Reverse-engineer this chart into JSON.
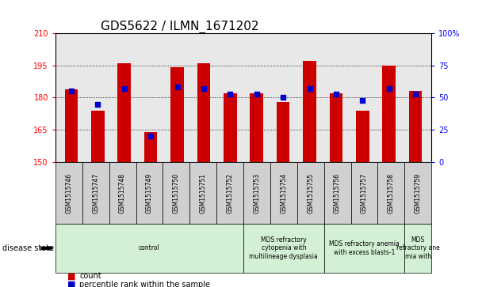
{
  "title": "GDS5622 / ILMN_1671202",
  "samples": [
    "GSM1515746",
    "GSM1515747",
    "GSM1515748",
    "GSM1515749",
    "GSM1515750",
    "GSM1515751",
    "GSM1515752",
    "GSM1515753",
    "GSM1515754",
    "GSM1515755",
    "GSM1515756",
    "GSM1515757",
    "GSM1515758",
    "GSM1515759"
  ],
  "counts": [
    184,
    174,
    196,
    164,
    194,
    196,
    182,
    182,
    178,
    197,
    182,
    174,
    195,
    183
  ],
  "percentile_ranks": [
    55,
    45,
    57,
    20,
    58,
    57,
    53,
    53,
    50,
    57,
    53,
    48,
    57,
    53
  ],
  "ylim_left": [
    150,
    210
  ],
  "ylim_right": [
    0,
    100
  ],
  "yticks_left": [
    150,
    165,
    180,
    195,
    210
  ],
  "yticks_right": [
    0,
    25,
    50,
    75,
    100
  ],
  "yticklabels_right": [
    "0",
    "25",
    "50",
    "75",
    "100%"
  ],
  "bar_color": "#cc0000",
  "dot_color": "#0000cc",
  "bar_width": 0.5,
  "dot_size": 25,
  "grid_color": "#000000",
  "background_color": "#ffffff",
  "plot_bg_color": "#e8e8e8",
  "group_boundaries": [
    {
      "start": 0,
      "end": 7,
      "label": "control"
    },
    {
      "start": 7,
      "end": 10,
      "label": "MDS refractory\ncytopenia with\nmultilineage dysplasia"
    },
    {
      "start": 10,
      "end": 13,
      "label": "MDS refractory anemia\nwith excess blasts-1"
    },
    {
      "start": 13,
      "end": 14,
      "label": "MDS\nrefractory ane\nmia with"
    }
  ],
  "disease_state_label": "disease state",
  "legend_items": [
    {
      "label": "count",
      "color": "#cc0000"
    },
    {
      "label": "percentile rank within the sample",
      "color": "#0000cc"
    }
  ],
  "title_fontsize": 11,
  "tick_fontsize": 7,
  "sample_fontsize": 5.5,
  "group_fontsize": 5.5,
  "legend_fontsize": 7
}
